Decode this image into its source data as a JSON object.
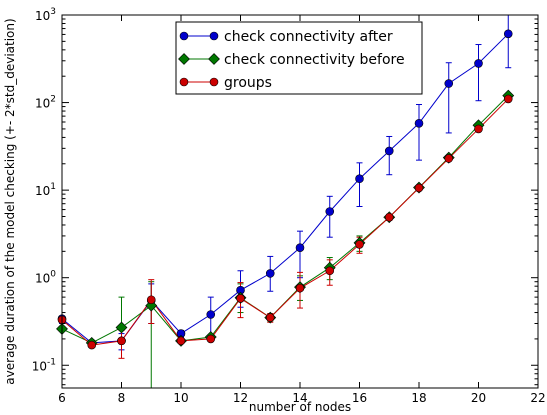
{
  "chart_data": {
    "type": "line",
    "xlabel": "number of nodes",
    "ylabel": "average duration of the model checking (+- 2*std_deviation)",
    "xlim": [
      6,
      22
    ],
    "ylim": [
      0.055,
      1000
    ],
    "yscale": "log",
    "x_ticks": [
      6,
      8,
      10,
      12,
      14,
      16,
      18,
      20,
      22
    ],
    "y_ticks": [
      {
        "value": 0.1,
        "base": "10",
        "exp": "-1"
      },
      {
        "value": 1,
        "base": "10",
        "exp": "0"
      },
      {
        "value": 10,
        "base": "10",
        "exp": "1"
      },
      {
        "value": 100,
        "base": "10",
        "exp": "2"
      },
      {
        "value": 1000,
        "base": "10",
        "exp": "3"
      }
    ],
    "legend_position": "top-center",
    "series": [
      {
        "name": "check connectivity after",
        "color": "#0000cc",
        "marker": "circle",
        "x": [
          6,
          7,
          8,
          9,
          10,
          11,
          12,
          13,
          14,
          15,
          16,
          17,
          18,
          19,
          20,
          21
        ],
        "y": [
          0.34,
          0.18,
          0.19,
          0.55,
          0.23,
          0.38,
          0.72,
          1.12,
          2.2,
          5.7,
          13.5,
          28,
          58,
          165,
          280,
          610
        ],
        "err_low": [
          0.3,
          0.17,
          0.15,
          0.3,
          0.21,
          0.22,
          0.46,
          0.7,
          1.0,
          2.9,
          6.5,
          15,
          22,
          45,
          105,
          250
        ],
        "err_high": [
          0.36,
          0.19,
          0.23,
          0.85,
          0.25,
          0.6,
          1.2,
          1.75,
          3.4,
          8.5,
          20.5,
          41,
          95,
          285,
          460,
          1000
        ]
      },
      {
        "name": "check connectivity before",
        "color": "#007700",
        "marker": "diamond",
        "x": [
          6,
          7,
          8,
          9,
          10,
          11,
          12,
          13,
          14,
          15,
          16,
          17,
          18,
          19,
          20,
          21
        ],
        "y": [
          0.26,
          0.18,
          0.27,
          0.48,
          0.19,
          0.21,
          0.59,
          0.35,
          0.78,
          1.3,
          2.5,
          4.9,
          10.7,
          23.5,
          55,
          120
        ],
        "err_low": [
          0.25,
          0.17,
          0.27,
          0.01,
          0.18,
          0.2,
          0.4,
          0.32,
          0.55,
          0.95,
          2.0,
          4.6,
          10.2,
          22.5,
          52,
          115
        ],
        "err_high": [
          0.27,
          0.19,
          0.6,
          0.9,
          0.2,
          0.22,
          0.85,
          0.38,
          1.05,
          1.7,
          3.0,
          5.2,
          11.2,
          24.5,
          58,
          125
        ]
      },
      {
        "name": "groups",
        "color": "#cc0000",
        "marker": "circle",
        "x": [
          6,
          7,
          8,
          9,
          10,
          11,
          12,
          13,
          14,
          15,
          16,
          17,
          18,
          19,
          20,
          21
        ],
        "y": [
          0.33,
          0.17,
          0.19,
          0.56,
          0.19,
          0.2,
          0.58,
          0.35,
          0.76,
          1.2,
          2.4,
          4.9,
          10.6,
          23,
          50,
          110
        ],
        "err_low": [
          0.31,
          0.165,
          0.12,
          0.3,
          0.18,
          0.19,
          0.35,
          0.31,
          0.45,
          0.82,
          1.9,
          4.5,
          10.0,
          22,
          47,
          104
        ],
        "err_high": [
          0.35,
          0.175,
          0.25,
          0.95,
          0.2,
          0.21,
          0.88,
          0.39,
          1.15,
          1.6,
          2.9,
          5.3,
          11.2,
          24,
          53,
          116
        ]
      }
    ]
  }
}
